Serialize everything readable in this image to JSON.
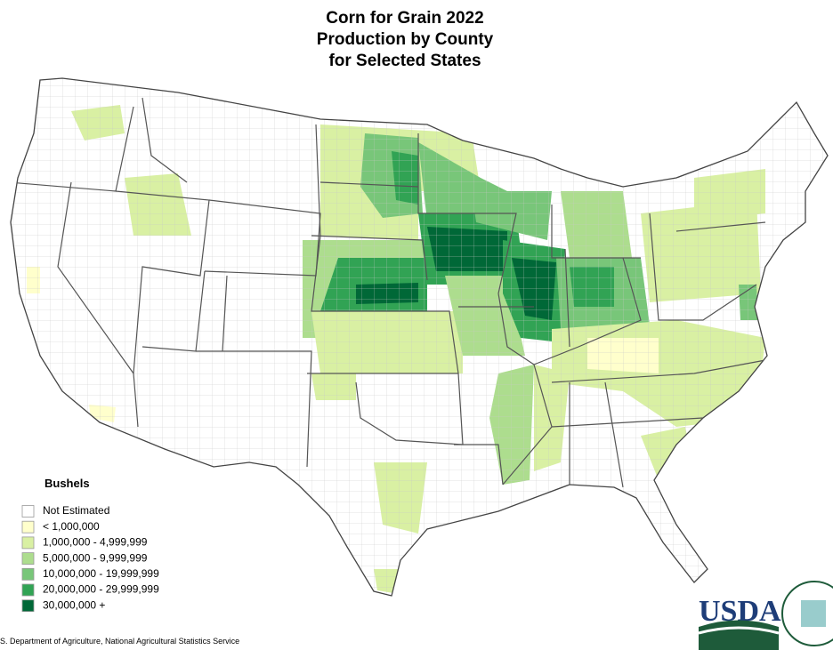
{
  "header": {
    "title_lines": [
      "Corn for Grain 2022",
      "Production by County",
      "for Selected States"
    ]
  },
  "legend": {
    "title": "Bushels",
    "items": [
      {
        "label": "Not Estimated",
        "color": "#ffffff"
      },
      {
        "label": "< 1,000,000",
        "color": "#ffffcc"
      },
      {
        "label": "1,000,000 - 4,999,999",
        "color": "#d9f0a3"
      },
      {
        "label": "5,000,000 -  9,999,999",
        "color": "#addd8e"
      },
      {
        "label": "10,000,000 - 19,999,999",
        "color": "#78c679"
      },
      {
        "label": "20,000,000 - 29,999,999",
        "color": "#31a354"
      },
      {
        "label": "30,000,000 +",
        "color": "#006837"
      }
    ]
  },
  "footer": {
    "source": "S. Department of Agriculture, National Agricultural Statistics Service"
  },
  "logo": {
    "text": "USDA"
  }
}
